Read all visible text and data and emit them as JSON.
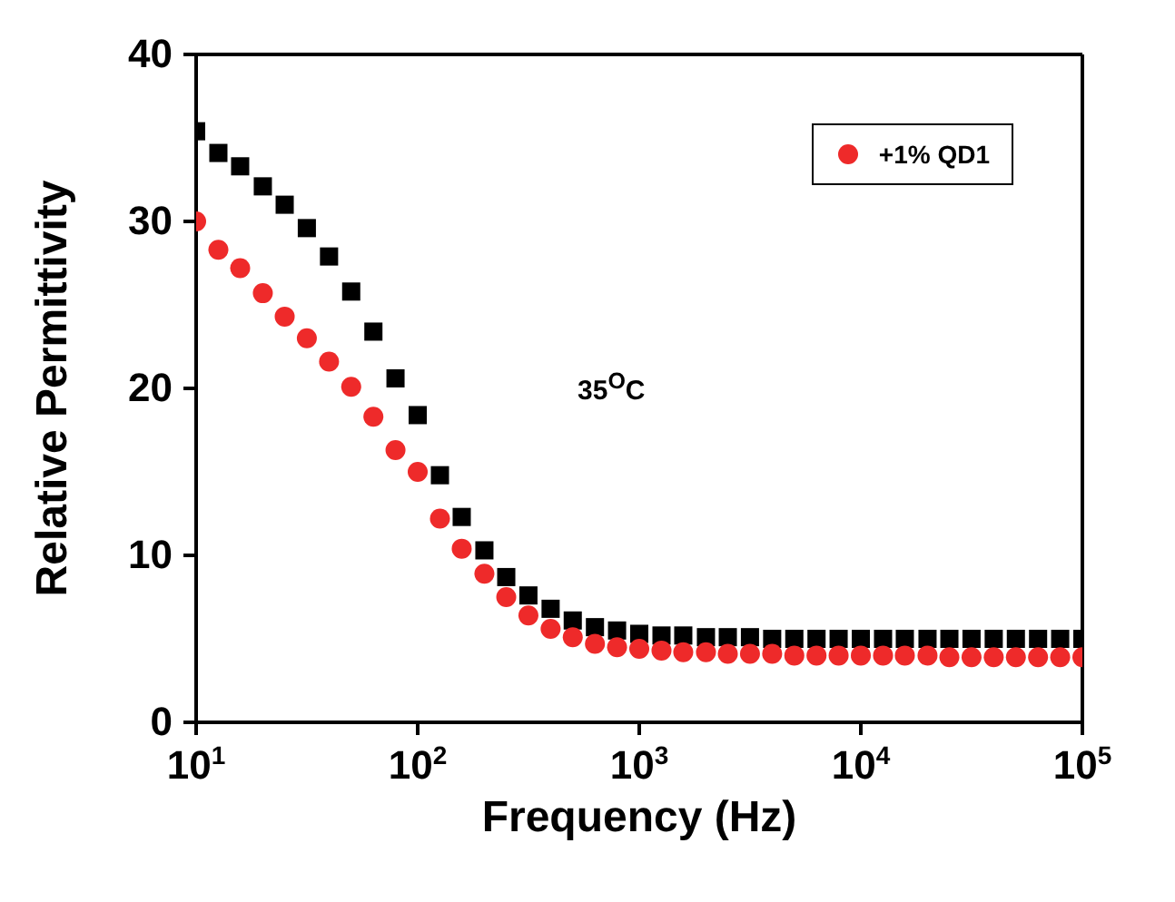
{
  "chart_data": {
    "type": "scatter",
    "xlabel": "Frequency (Hz)",
    "ylabel": "Relative Permittivity",
    "log": "x",
    "xlim": [
      10,
      100000
    ],
    "ylim": [
      0,
      40
    ],
    "xticks": [
      {
        "value": 10,
        "label": "10$^{1}$"
      },
      {
        "value": 100,
        "label": "10$^{2}$"
      },
      {
        "value": 1000,
        "label": "10$^{3}$"
      },
      {
        "value": 10000,
        "label": "10$^{4}$"
      },
      {
        "value": 100000,
        "label": "10$^{5}$"
      }
    ],
    "yticks": [
      0,
      10,
      20,
      30,
      40
    ],
    "legend": "top right",
    "annotations": [
      "35$^{O}$C"
    ],
    "x": [
      10,
      12.6,
      15.8,
      20,
      25.1,
      31.6,
      39.8,
      50.1,
      63.1,
      79.4,
      100,
      126,
      158,
      200,
      251,
      316,
      398,
      501,
      631,
      794,
      1000,
      1260,
      1580,
      2000,
      2510,
      3160,
      3980,
      5010,
      6310,
      7940,
      10000,
      12600,
      15800,
      20000,
      25100,
      31600,
      39800,
      50100,
      63100,
      79400,
      100000
    ],
    "series": [
      {
        "color": "#000000",
        "marker": "square",
        "values": [
          35.4,
          34.1,
          33.3,
          32.1,
          31.0,
          29.6,
          27.9,
          25.8,
          23.4,
          20.6,
          18.4,
          14.8,
          12.3,
          10.3,
          8.7,
          7.6,
          6.8,
          6.1,
          5.7,
          5.5,
          5.3,
          5.2,
          5.2,
          5.1,
          5.1,
          5.1,
          5.0,
          5.0,
          5.0,
          5.0,
          5.0,
          5.0,
          5.0,
          5.0,
          5.0,
          5.0,
          5.0,
          5.0,
          5.0,
          5.0,
          5.0
        ]
      },
      {
        "name": "+1% QD1",
        "color": "#ee2a2a",
        "marker": "circle",
        "values": [
          30.0,
          28.3,
          27.2,
          25.7,
          24.3,
          23.0,
          21.6,
          20.1,
          18.3,
          16.3,
          15.0,
          12.2,
          10.4,
          8.9,
          7.5,
          6.4,
          5.6,
          5.1,
          4.7,
          4.5,
          4.4,
          4.3,
          4.2,
          4.2,
          4.1,
          4.1,
          4.1,
          4.0,
          4.0,
          4.0,
          4.0,
          4.0,
          4.0,
          4.0,
          3.9,
          3.9,
          3.9,
          3.9,
          3.9,
          3.9,
          3.9
        ]
      }
    ]
  }
}
